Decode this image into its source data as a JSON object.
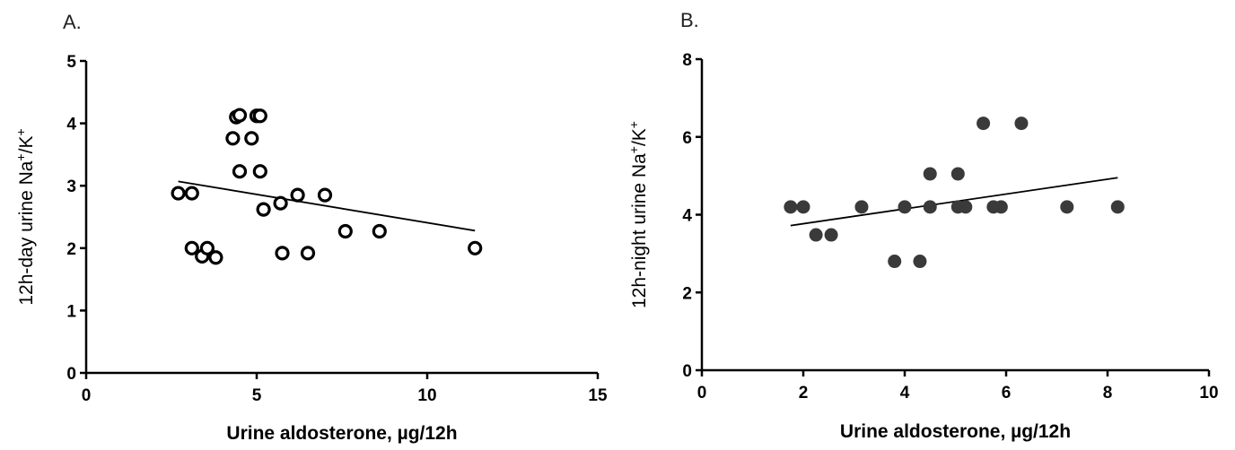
{
  "chart_data": [
    {
      "type": "scatter",
      "panel_label": "A.",
      "xlabel": "Urine aldosterone, µg/12h",
      "ylabel": {
        "main": "12h-day urine Na",
        "sup1": "+",
        "mid": "/K",
        "sup2": "+"
      },
      "xlim": [
        0,
        15
      ],
      "ylim": [
        0,
        5
      ],
      "xticks": [
        0,
        5,
        10,
        15
      ],
      "yticks": [
        0,
        1,
        2,
        3,
        4,
        5
      ],
      "marker": "open-circle",
      "grid": false,
      "points": [
        {
          "x": 2.7,
          "y": 2.88
        },
        {
          "x": 3.1,
          "y": 2.88
        },
        {
          "x": 3.1,
          "y": 2.0
        },
        {
          "x": 3.4,
          "y": 1.87
        },
        {
          "x": 3.55,
          "y": 2.0
        },
        {
          "x": 3.8,
          "y": 1.85
        },
        {
          "x": 4.3,
          "y": 3.76
        },
        {
          "x": 4.4,
          "y": 4.1
        },
        {
          "x": 4.5,
          "y": 4.13
        },
        {
          "x": 4.5,
          "y": 3.23
        },
        {
          "x": 4.85,
          "y": 3.76
        },
        {
          "x": 5.0,
          "y": 4.12
        },
        {
          "x": 5.1,
          "y": 4.12
        },
        {
          "x": 5.1,
          "y": 3.23
        },
        {
          "x": 5.2,
          "y": 2.62
        },
        {
          "x": 5.7,
          "y": 2.72
        },
        {
          "x": 5.75,
          "y": 1.92
        },
        {
          "x": 6.2,
          "y": 2.85
        },
        {
          "x": 6.5,
          "y": 1.92
        },
        {
          "x": 7.0,
          "y": 2.85
        },
        {
          "x": 7.6,
          "y": 2.27
        },
        {
          "x": 8.6,
          "y": 2.27
        },
        {
          "x": 11.4,
          "y": 2.0
        }
      ],
      "regression_line": {
        "x": [
          2.7,
          11.4
        ],
        "y": [
          3.07,
          2.28
        ]
      }
    },
    {
      "type": "scatter",
      "panel_label": "B.",
      "xlabel": "Urine aldosterone, µg/12h",
      "ylabel": {
        "main": "12h-night urine Na",
        "sup1": "+",
        "mid": "/K",
        "sup2": "+"
      },
      "xlim": [
        0,
        10
      ],
      "ylim": [
        0,
        8
      ],
      "xticks": [
        0,
        2,
        4,
        6,
        8,
        10
      ],
      "yticks": [
        0,
        2,
        4,
        6,
        8
      ],
      "marker": "filled-circle",
      "grid": false,
      "points": [
        {
          "x": 1.75,
          "y": 4.2
        },
        {
          "x": 2.0,
          "y": 4.2
        },
        {
          "x": 2.25,
          "y": 3.48
        },
        {
          "x": 2.55,
          "y": 3.48
        },
        {
          "x": 3.15,
          "y": 4.2
        },
        {
          "x": 3.8,
          "y": 2.8
        },
        {
          "x": 4.0,
          "y": 4.2
        },
        {
          "x": 4.3,
          "y": 2.8
        },
        {
          "x": 4.5,
          "y": 5.05
        },
        {
          "x": 4.5,
          "y": 4.2
        },
        {
          "x": 5.05,
          "y": 5.05
        },
        {
          "x": 5.05,
          "y": 4.2
        },
        {
          "x": 5.2,
          "y": 4.2
        },
        {
          "x": 5.55,
          "y": 6.35
        },
        {
          "x": 5.75,
          "y": 4.2
        },
        {
          "x": 5.9,
          "y": 4.2
        },
        {
          "x": 6.3,
          "y": 6.35
        },
        {
          "x": 7.2,
          "y": 4.2
        },
        {
          "x": 8.2,
          "y": 4.2
        }
      ],
      "regression_line": {
        "x": [
          1.75,
          8.2
        ],
        "y": [
          3.72,
          4.95
        ]
      }
    }
  ]
}
